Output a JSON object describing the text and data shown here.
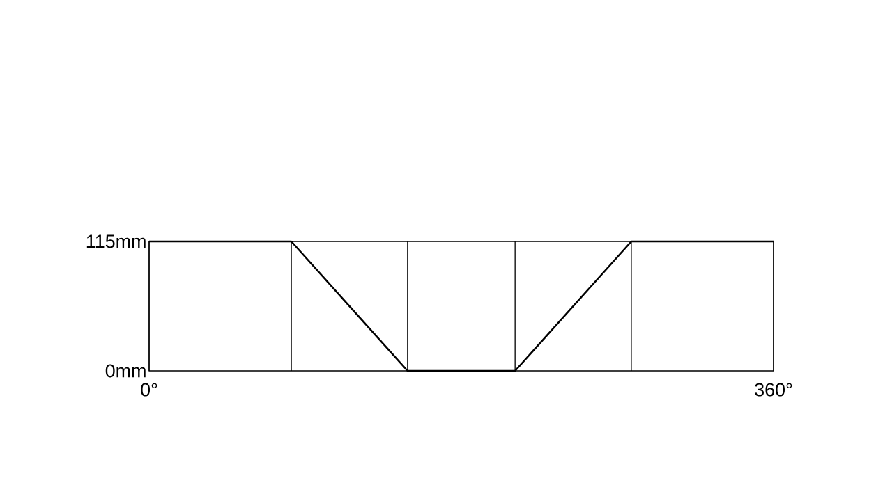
{
  "chart_data": {
    "type": "line",
    "x": [
      0,
      82,
      149,
      211,
      278,
      360
    ],
    "values": [
      115,
      115,
      0,
      0,
      115,
      115
    ],
    "color": "#000000",
    "line_style": "solid",
    "xlim": [
      0,
      360
    ],
    "ylim": [
      0,
      115
    ],
    "xticks": [
      {
        "value": 0,
        "label": "0°"
      },
      {
        "value": 82,
        "label": null
      },
      {
        "value": 149,
        "label": null
      },
      {
        "value": 211,
        "label": null
      },
      {
        "value": 278,
        "label": null
      },
      {
        "value": 360,
        "label": "360°"
      }
    ],
    "yticks": [
      {
        "value": 0,
        "label": "0mm"
      },
      {
        "value": 115,
        "label": "115mm"
      }
    ],
    "grid": "x"
  }
}
